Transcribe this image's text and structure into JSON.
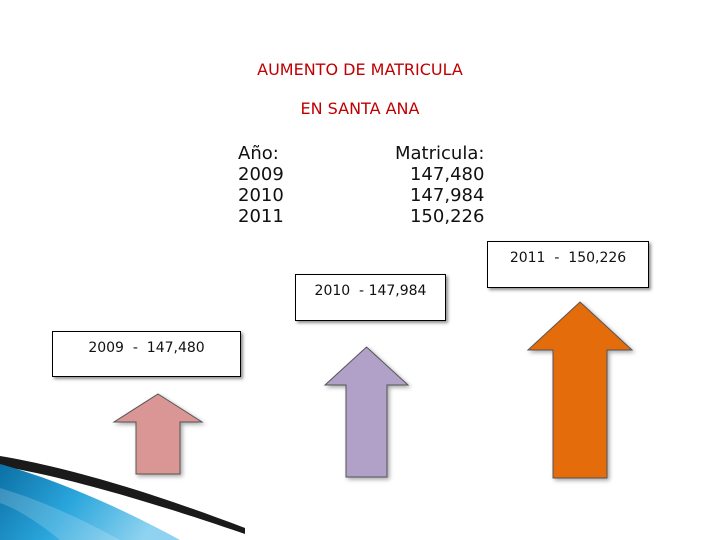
{
  "slide": {
    "title_line1": "AUMENTO DE MATRICULA",
    "title_line2": "EN SANTA  ANA"
  },
  "table": {
    "year_header": "Año:",
    "enrollment_header": "Matricula:",
    "rows": [
      {
        "year": "2009",
        "enrollment": "147,480"
      },
      {
        "year": "2010",
        "enrollment": "147,984"
      },
      {
        "year": "2011",
        "enrollment": "150,226"
      }
    ]
  },
  "callouts": {
    "y2011": "2011  -  150,226",
    "y2010": "2010  - 147,984",
    "y2009": "2009  -  147,480"
  },
  "colors": {
    "title": "#c00000",
    "arrow_2009": "#da9694",
    "arrow_2010": "#b1a0c7",
    "arrow_2011": "#e46c0a",
    "swoosh": "#1a8fc8"
  }
}
